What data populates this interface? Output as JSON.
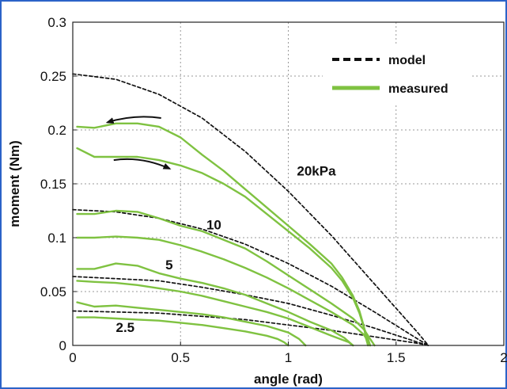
{
  "chart_data": {
    "type": "line",
    "xlabel": "angle (rad)",
    "ylabel": "moment (Nm)",
    "xlim": [
      0,
      2
    ],
    "ylim": [
      0,
      0.3
    ],
    "xticks": [
      "0",
      "0.5",
      "1",
      "1.5",
      "2"
    ],
    "yticks": [
      "0",
      "0.05",
      "0.1",
      "0.15",
      "0.2",
      "0.25",
      "0.3"
    ],
    "grid": true,
    "legend_position": "top-right",
    "legend": [
      {
        "label": "model",
        "style": "dashed",
        "color": "#111111"
      },
      {
        "label": "measured",
        "style": "solid",
        "color": "#7fc241"
      }
    ],
    "annotations": [
      {
        "text": "20kPa",
        "x": 1.04,
        "y": 0.162
      },
      {
        "text": "10",
        "x": 0.62,
        "y": 0.112
      },
      {
        "text": "5",
        "x": 0.43,
        "y": 0.075
      },
      {
        "text": "2.5",
        "x": 0.2,
        "y": 0.017
      }
    ],
    "arrows": [
      {
        "direction": "left",
        "from": [
          0.41,
          0.211
        ],
        "to": [
          0.16,
          0.207
        ]
      },
      {
        "direction": "right",
        "from": [
          0.19,
          0.172
        ],
        "to": [
          0.45,
          0.164
        ]
      }
    ],
    "series": [
      {
        "pressure": "20kPa",
        "style": "dashed",
        "x": [
          0,
          0.2,
          0.4,
          0.6,
          0.8,
          1.0,
          1.2,
          1.4,
          1.6,
          1.65
        ],
        "y": [
          0.252,
          0.247,
          0.233,
          0.211,
          0.18,
          0.143,
          0.102,
          0.057,
          0.012,
          0
        ]
      },
      {
        "pressure": "10",
        "style": "dashed",
        "x": [
          0,
          0.2,
          0.4,
          0.6,
          0.8,
          1.0,
          1.2,
          1.4,
          1.6,
          1.65
        ],
        "y": [
          0.126,
          0.124,
          0.118,
          0.108,
          0.094,
          0.076,
          0.055,
          0.031,
          0.006,
          0
        ]
      },
      {
        "pressure": "5",
        "style": "dashed",
        "x": [
          0,
          0.2,
          0.4,
          0.6,
          0.8,
          1.0,
          1.2,
          1.4,
          1.6,
          1.65
        ],
        "y": [
          0.064,
          0.062,
          0.06,
          0.054,
          0.047,
          0.039,
          0.028,
          0.016,
          0.003,
          0
        ]
      },
      {
        "pressure": "2.5",
        "style": "dashed",
        "x": [
          0,
          0.2,
          0.4,
          0.6,
          0.8,
          1.0,
          1.2,
          1.4,
          1.6,
          1.65
        ],
        "y": [
          0.032,
          0.031,
          0.03,
          0.027,
          0.024,
          0.019,
          0.014,
          0.008,
          0.002,
          0
        ]
      },
      {
        "pressure": "20kPa",
        "style": "solid",
        "x": [
          0.02,
          0.1,
          0.2,
          0.3,
          0.4,
          0.5,
          0.6,
          0.7,
          0.8,
          0.9,
          1.0,
          1.1,
          1.2,
          1.25,
          1.3,
          1.33,
          1.35,
          1.36,
          1.37
        ],
        "y": [
          0.203,
          0.202,
          0.206,
          0.206,
          0.203,
          0.193,
          0.177,
          0.162,
          0.145,
          0.128,
          0.111,
          0.094,
          0.076,
          0.063,
          0.046,
          0.032,
          0.018,
          0.007,
          0
        ]
      },
      {
        "pressure": "20kPa",
        "style": "solid",
        "x": [
          0.02,
          0.1,
          0.2,
          0.3,
          0.4,
          0.5,
          0.6,
          0.7,
          0.8,
          0.9,
          1.0,
          1.1,
          1.2,
          1.25,
          1.3,
          1.33,
          1.35,
          1.37,
          1.38
        ],
        "y": [
          0.183,
          0.175,
          0.175,
          0.175,
          0.172,
          0.167,
          0.16,
          0.15,
          0.138,
          0.122,
          0.106,
          0.09,
          0.072,
          0.06,
          0.044,
          0.03,
          0.017,
          0.006,
          0
        ]
      },
      {
        "pressure": "10",
        "style": "solid",
        "x": [
          0.02,
          0.1,
          0.2,
          0.3,
          0.4,
          0.5,
          0.6,
          0.7,
          0.8,
          0.9,
          1.0,
          1.1,
          1.2,
          1.3,
          1.35,
          1.38,
          1.4
        ],
        "y": [
          0.122,
          0.122,
          0.125,
          0.124,
          0.118,
          0.111,
          0.106,
          0.098,
          0.09,
          0.078,
          0.065,
          0.052,
          0.039,
          0.025,
          0.015,
          0.006,
          0
        ]
      },
      {
        "pressure": "10",
        "style": "solid",
        "x": [
          0.02,
          0.1,
          0.2,
          0.3,
          0.4,
          0.5,
          0.6,
          0.7,
          0.8,
          0.9,
          1.0,
          1.1,
          1.2,
          1.3,
          1.35,
          1.37,
          1.38
        ],
        "y": [
          0.1,
          0.1,
          0.101,
          0.1,
          0.098,
          0.093,
          0.087,
          0.08,
          0.072,
          0.063,
          0.053,
          0.042,
          0.031,
          0.019,
          0.01,
          0.004,
          0
        ]
      },
      {
        "pressure": "5",
        "style": "solid",
        "x": [
          0.02,
          0.1,
          0.2,
          0.3,
          0.4,
          0.5,
          0.6,
          0.7,
          0.8,
          0.9,
          1.0,
          1.1,
          1.2,
          1.26,
          1.3
        ],
        "y": [
          0.071,
          0.071,
          0.076,
          0.074,
          0.067,
          0.062,
          0.058,
          0.053,
          0.047,
          0.039,
          0.031,
          0.022,
          0.014,
          0.007,
          0
        ]
      },
      {
        "pressure": "5",
        "style": "solid",
        "x": [
          0.02,
          0.1,
          0.2,
          0.3,
          0.4,
          0.5,
          0.6,
          0.7,
          0.8,
          0.9,
          1.0,
          1.1,
          1.2,
          1.28,
          1.3
        ],
        "y": [
          0.06,
          0.059,
          0.058,
          0.056,
          0.053,
          0.05,
          0.046,
          0.041,
          0.036,
          0.031,
          0.025,
          0.017,
          0.009,
          0.003,
          0
        ]
      },
      {
        "pressure": "2.5",
        "style": "solid",
        "x": [
          0.02,
          0.1,
          0.2,
          0.3,
          0.4,
          0.5,
          0.6,
          0.7,
          0.8,
          0.9,
          1.0,
          1.05,
          1.08
        ],
        "y": [
          0.04,
          0.036,
          0.037,
          0.035,
          0.033,
          0.031,
          0.029,
          0.026,
          0.022,
          0.018,
          0.012,
          0.006,
          0
        ]
      },
      {
        "pressure": "2.5",
        "style": "solid",
        "x": [
          0.02,
          0.1,
          0.2,
          0.3,
          0.4,
          0.5,
          0.6,
          0.7,
          0.8,
          0.9,
          0.95,
          0.98,
          1.0
        ],
        "y": [
          0.026,
          0.026,
          0.025,
          0.024,
          0.023,
          0.021,
          0.019,
          0.016,
          0.013,
          0.009,
          0.006,
          0.003,
          0
        ]
      }
    ]
  }
}
